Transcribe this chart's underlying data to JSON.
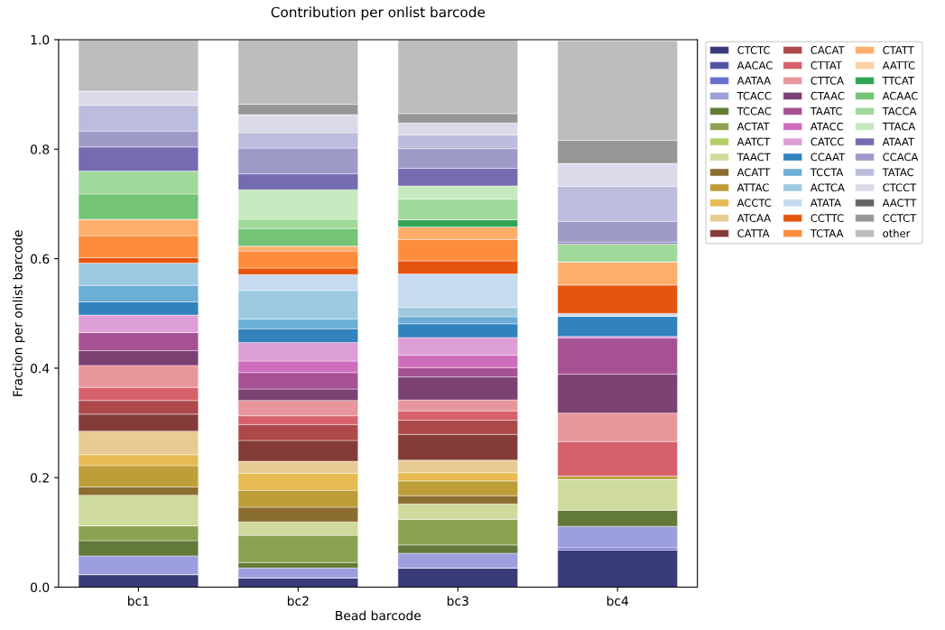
{
  "chart_data": {
    "type": "bar",
    "stacked": true,
    "title": "Contribution per onlist barcode",
    "xlabel": "Bead barcode",
    "ylabel": "Fraction per onlist barcode",
    "categories": [
      "bc1",
      "bc2",
      "bc3",
      "bc4"
    ],
    "ylim": [
      0,
      1
    ],
    "yticks": [
      {
        "value": 0,
        "label": "0.0"
      },
      {
        "value": 0.2,
        "label": "0.2"
      },
      {
        "value": 0.4,
        "label": "0.4"
      },
      {
        "value": 0.6,
        "label": "0.6"
      },
      {
        "value": 0.8,
        "label": "0.8"
      },
      {
        "value": 1,
        "label": "1.0"
      }
    ],
    "grid": false,
    "legend": "top right",
    "series": [
      {
        "name": "CTCTC",
        "color": "#393b79",
        "values": [
          0.023,
          0.017,
          0.035,
          0.068
        ]
      },
      {
        "name": "AACAC",
        "color": "#5254a3",
        "values": [
          0,
          0,
          0,
          0
        ]
      },
      {
        "name": "AATAA",
        "color": "#6b6ecf",
        "values": [
          0,
          0,
          0,
          0.004
        ]
      },
      {
        "name": "TCACC",
        "color": "#9c9ede",
        "values": [
          0.034,
          0.018,
          0.027,
          0.039
        ]
      },
      {
        "name": "TCCAC",
        "color": "#637939",
        "values": [
          0.028,
          0.01,
          0.015,
          0.03
        ]
      },
      {
        "name": "ACTAT",
        "color": "#8ca252",
        "values": [
          0.027,
          0.05,
          0.047,
          0
        ]
      },
      {
        "name": "AATCT",
        "color": "#b5cf6b",
        "values": [
          0,
          0,
          0,
          0
        ]
      },
      {
        "name": "TAACT",
        "color": "#cedb9c",
        "values": [
          0.056,
          0.024,
          0.028,
          0.056
        ]
      },
      {
        "name": "ACATT",
        "color": "#8c6d31",
        "values": [
          0.015,
          0.027,
          0.015,
          0
        ]
      },
      {
        "name": "ATTAC",
        "color": "#bd9e39",
        "values": [
          0.039,
          0.031,
          0.027,
          0.006
        ]
      },
      {
        "name": "ACCTC",
        "color": "#e7ba52",
        "values": [
          0.02,
          0.031,
          0.015,
          0
        ]
      },
      {
        "name": "ATCAA",
        "color": "#e7cb94",
        "values": [
          0.043,
          0.022,
          0.023,
          0
        ]
      },
      {
        "name": "CATTA",
        "color": "#843c39",
        "values": [
          0.031,
          0.038,
          0.047,
          0
        ]
      },
      {
        "name": "CACAT",
        "color": "#ad494a",
        "values": [
          0.025,
          0.029,
          0.026,
          0
        ]
      },
      {
        "name": "CTTAT",
        "color": "#d6616b",
        "values": [
          0.024,
          0.016,
          0.017,
          0.063
        ]
      },
      {
        "name": "CTTCA",
        "color": "#e7969c",
        "values": [
          0.04,
          0.028,
          0.02,
          0.052
        ]
      },
      {
        "name": "CTAAC",
        "color": "#7b4173",
        "values": [
          0.027,
          0.021,
          0.042,
          0.071
        ]
      },
      {
        "name": "TAATC",
        "color": "#a55194",
        "values": [
          0.033,
          0.03,
          0.017,
          0.066
        ]
      },
      {
        "name": "ATACC",
        "color": "#ce6dbd",
        "values": [
          0,
          0.021,
          0.023,
          0.003
        ]
      },
      {
        "name": "CATCC",
        "color": "#de9ed6",
        "values": [
          0.032,
          0.034,
          0.032,
          0
        ]
      },
      {
        "name": "CCAAT",
        "color": "#3182bd",
        "values": [
          0.024,
          0.025,
          0.025,
          0.037
        ]
      },
      {
        "name": "TCCTA",
        "color": "#6baed6",
        "values": [
          0.03,
          0.018,
          0.013,
          0
        ]
      },
      {
        "name": "ACTCA",
        "color": "#9ecae1",
        "values": [
          0.041,
          0.052,
          0.017,
          0
        ]
      },
      {
        "name": "ATATA",
        "color": "#c6dbef",
        "values": [
          0,
          0.029,
          0.061,
          0.005
        ]
      },
      {
        "name": "CCTTC",
        "color": "#e6550d",
        "values": [
          0.01,
          0.012,
          0.024,
          0.052
        ]
      },
      {
        "name": "TCTAA",
        "color": "#fd8d3c",
        "values": [
          0.04,
          0.031,
          0.039,
          0
        ]
      },
      {
        "name": "CTATT",
        "color": "#fdae6b",
        "values": [
          0.03,
          0.009,
          0.023,
          0.042
        ]
      },
      {
        "name": "AATTC",
        "color": "#fdd0a2",
        "values": [
          0,
          0,
          0,
          0
        ]
      },
      {
        "name": "TTCAT",
        "color": "#31a354",
        "values": [
          0,
          0,
          0.013,
          0
        ]
      },
      {
        "name": "ACAAC",
        "color": "#74c476",
        "values": [
          0.046,
          0.032,
          0,
          0
        ]
      },
      {
        "name": "TACCA",
        "color": "#a1d99b",
        "values": [
          0.042,
          0.017,
          0.038,
          0.033
        ]
      },
      {
        "name": "TTACA",
        "color": "#c7e9c0",
        "values": [
          0,
          0.054,
          0.024,
          0
        ]
      },
      {
        "name": "ATAAT",
        "color": "#756bb1",
        "values": [
          0.044,
          0.029,
          0.032,
          0.003
        ]
      },
      {
        "name": "CCACA",
        "color": "#9e9ac8",
        "values": [
          0.029,
          0.047,
          0.036,
          0.038
        ]
      },
      {
        "name": "TATAC",
        "color": "#bcbddc",
        "values": [
          0.047,
          0.028,
          0.025,
          0.064
        ]
      },
      {
        "name": "CTCCT",
        "color": "#dadaeb",
        "values": [
          0.026,
          0.033,
          0.022,
          0.042
        ]
      },
      {
        "name": "AACTT",
        "color": "#636363",
        "values": [
          0,
          0,
          0,
          0
        ]
      },
      {
        "name": "CCTCT",
        "color": "#969696",
        "values": [
          0,
          0.019,
          0.017,
          0.042
        ]
      },
      {
        "name": "other",
        "color": "#bdbdbd",
        "values": [
          0.094,
          0.118,
          0.135,
          0.182
        ]
      }
    ]
  }
}
